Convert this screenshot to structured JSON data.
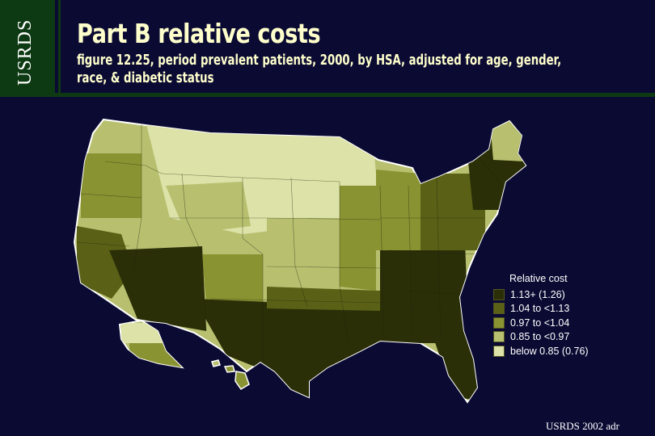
{
  "logo": {
    "text": "USRDS"
  },
  "title": "Part B relative costs",
  "subtitle": "figure 12.25, period prevalent patients, 2000, by HSA, adjusted for age, gender, race, & diabetic status",
  "legend": {
    "title": "Relative cost",
    "items": [
      {
        "label": "1.13+ (1.26)",
        "color": "#2b2f08"
      },
      {
        "label": "1.04 to <1.13",
        "color": "#5a6116"
      },
      {
        "label": "0.97 to <1.04",
        "color": "#8a9332"
      },
      {
        "label": "0.85 to <0.97",
        "color": "#b8c070"
      },
      {
        "label": "below 0.85 (0.76)",
        "color": "#dde2a8"
      }
    ]
  },
  "map_regions": [
    {
      "region": "West coast",
      "level": 3
    },
    {
      "region": "Northern plains",
      "level": 5
    },
    {
      "region": "Desert southwest",
      "level": 1
    },
    {
      "region": "Texas / Gulf",
      "level": 1
    },
    {
      "region": "Southeast",
      "level": 1
    },
    {
      "region": "Northeast",
      "level": 2
    },
    {
      "region": "Alaska",
      "level": 4
    },
    {
      "region": "Hawaii",
      "level": 3
    }
  ],
  "footer": "USRDS 2002 adr"
}
